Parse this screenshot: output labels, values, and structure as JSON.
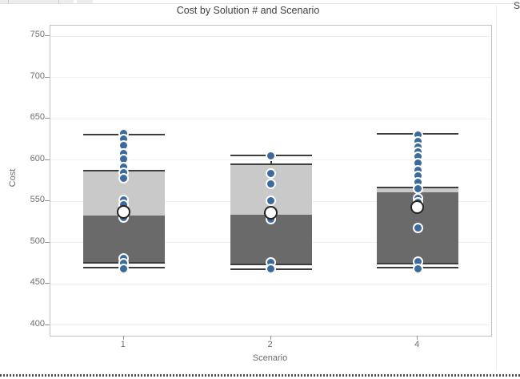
{
  "window": {
    "top_right_fragment": "S"
  },
  "chart_data": {
    "type": "boxplot",
    "title": "Cost by Solution # and Scenario",
    "xlabel": "Scenario",
    "ylabel": "Cost",
    "categories": [
      "1",
      "2",
      "4"
    ],
    "ylim": [
      387,
      763
    ],
    "yticks": [
      400,
      450,
      500,
      550,
      600,
      650,
      700,
      750
    ],
    "grid": "horizontal",
    "legend": "none",
    "series": [
      {
        "category": "1",
        "whisker_low": 470,
        "q1": 475,
        "median": 533,
        "q3": 587,
        "whisker_high": 631,
        "mean": 537,
        "points": [
          632,
          626,
          618,
          608,
          601,
          592,
          585,
          578,
          552,
          546,
          530,
          481,
          475,
          468
        ]
      },
      {
        "category": "2",
        "whisker_low": 468,
        "q1": 473,
        "median": 534,
        "q3": 595,
        "whisker_high": 606,
        "mean": 536,
        "points": [
          605,
          584,
          571,
          551,
          528,
          476,
          468
        ]
      },
      {
        "category": "4",
        "whisker_low": 470,
        "q1": 474,
        "median": 561,
        "q3": 567,
        "whisker_high": 632,
        "mean": 542,
        "points": [
          630,
          623,
          616,
          610,
          604,
          596,
          588,
          581,
          573,
          565,
          554,
          549,
          518,
          477,
          468
        ]
      }
    ],
    "colors": {
      "box_upper": "#c9c9c9",
      "box_lower": "#6a6a6a",
      "box_border": "#3d3d3d",
      "whisker": "#3d3d3d",
      "point_fill": "#3b6a9d",
      "point_halo": "#ffffff",
      "mean_fill": "#ffffff",
      "mean_ring": "#222222",
      "grid": "#f0f0f0",
      "axis_border": "#c2c2c2",
      "tick": "#909090",
      "label": "#6e6e6e"
    }
  }
}
